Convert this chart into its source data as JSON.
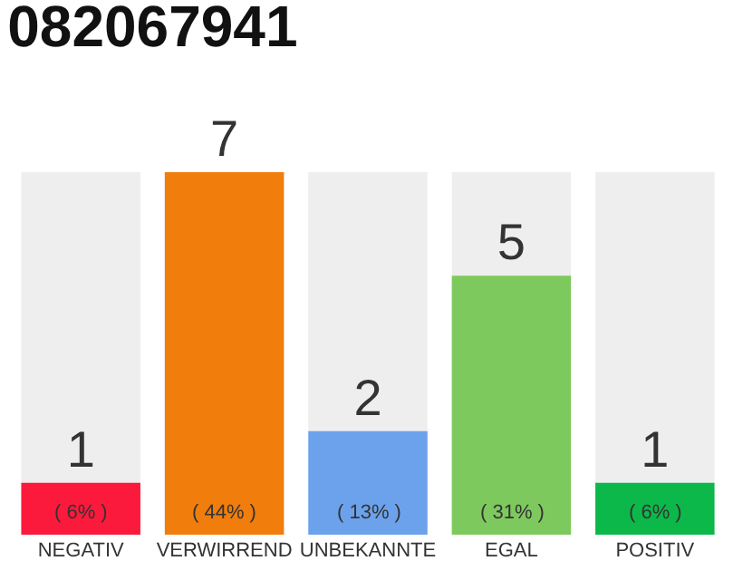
{
  "chart_data": {
    "type": "bar",
    "title": "082067941",
    "categories": [
      "NEGATIV",
      "VERWIRREND",
      "UNBEKANNTE",
      "EGAL",
      "POSITIV"
    ],
    "values": [
      1,
      7,
      2,
      5,
      1
    ],
    "colors": [
      "#fc1a3c",
      "#f07d0c",
      "#6ca2ec",
      "#7ec95e",
      "#0cb84a"
    ],
    "ylim": [
      0,
      7
    ],
    "data_labels": true,
    "grid": false,
    "legend": false,
    "tick_labels": "x",
    "annotations": [
      "( 6% )",
      "( 44% )",
      "( 13% )",
      "( 31% )",
      "( 6% )"
    ]
  }
}
